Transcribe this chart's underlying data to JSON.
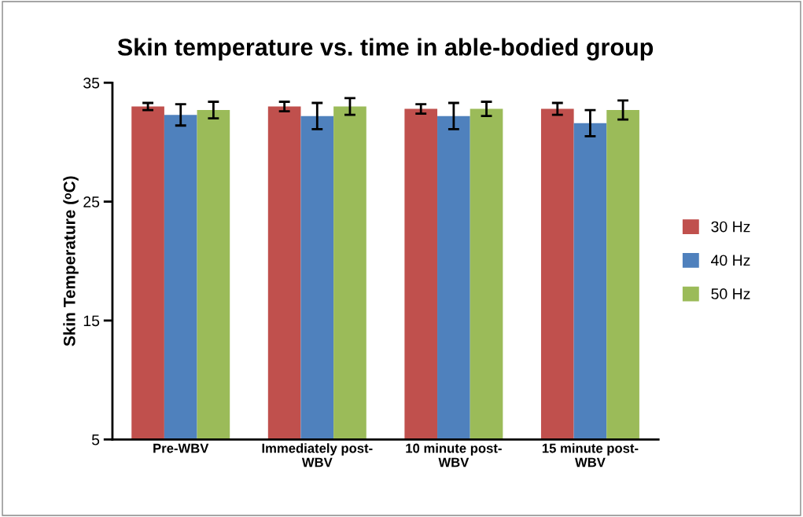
{
  "chart_data": {
    "type": "bar",
    "title": "Skin temperature vs. time in able-bodied group",
    "ylabel": "Skin Temperature (ᵒC)",
    "categories": [
      "Pre-WBV",
      "Immediately post-WBV",
      "10 minute post-WBV",
      "15 minute post-WBV"
    ],
    "series": [
      {
        "name": "30 Hz",
        "color": "#c0504d",
        "values": [
          33.0,
          33.0,
          32.8,
          32.8
        ],
        "errors": [
          0.3,
          0.4,
          0.4,
          0.5
        ]
      },
      {
        "name": "40 Hz",
        "color": "#4f81bd",
        "values": [
          32.3,
          32.2,
          32.2,
          31.6
        ],
        "errors": [
          0.9,
          1.1,
          1.1,
          1.1
        ]
      },
      {
        "name": "50 Hz",
        "color": "#9bbb59",
        "values": [
          32.7,
          33.0,
          32.8,
          32.7
        ],
        "errors": [
          0.7,
          0.7,
          0.6,
          0.8
        ]
      }
    ],
    "ylim": [
      5,
      35
    ],
    "yticks": [
      5,
      15,
      25,
      35
    ],
    "grid": false,
    "legend": "right"
  }
}
